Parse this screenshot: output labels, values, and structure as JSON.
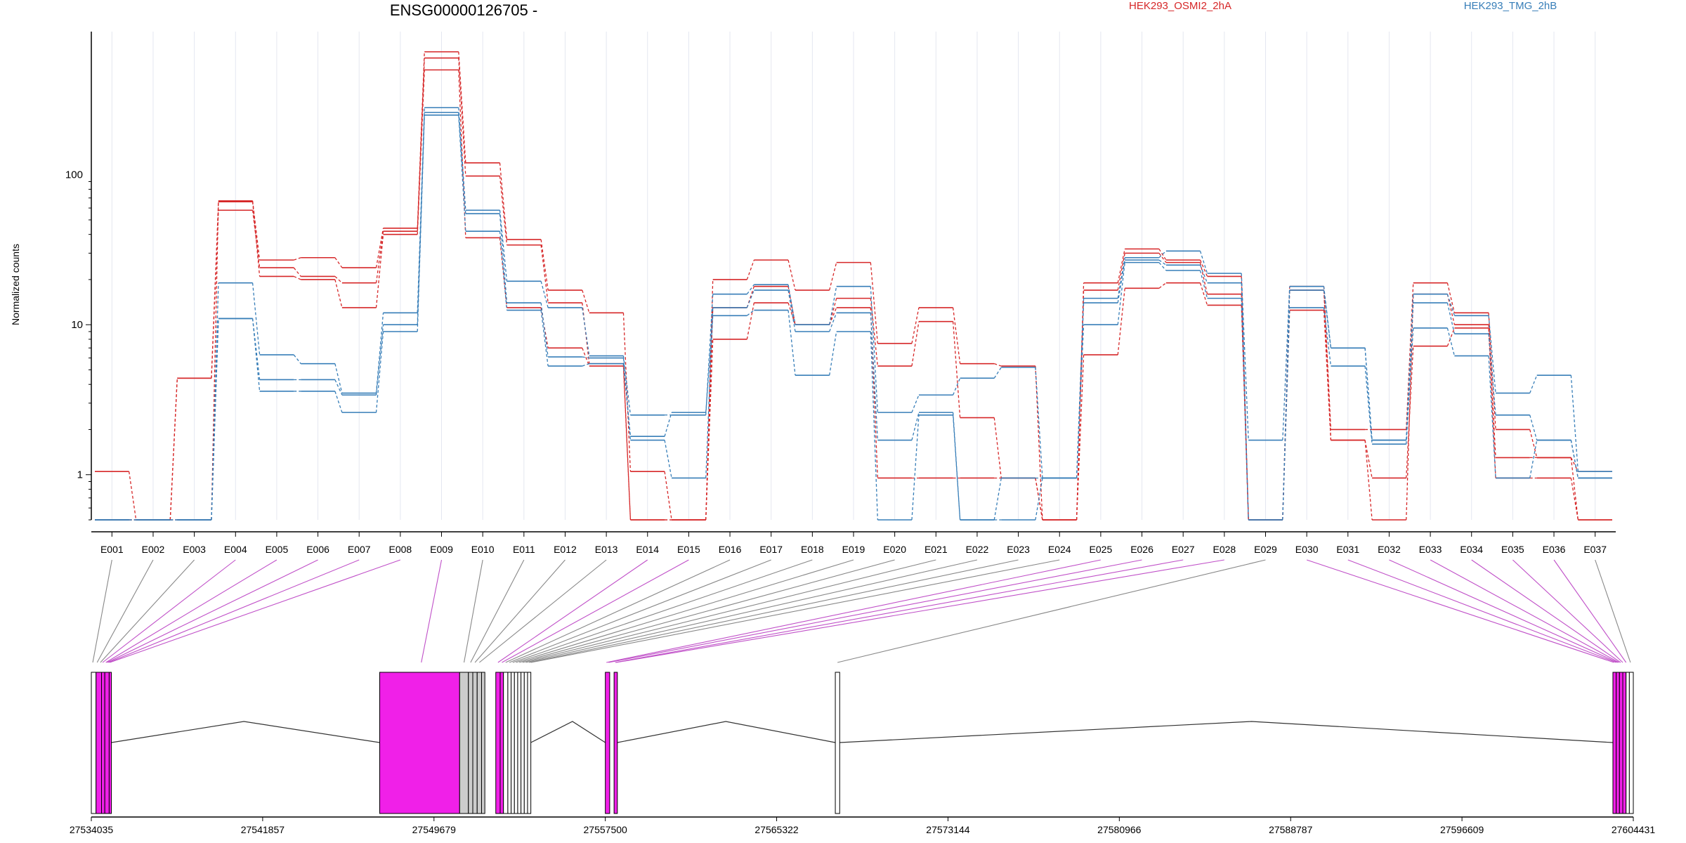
{
  "chart_data": {
    "type": "line",
    "title": "ENSG00000126705 -",
    "ylabel": "Normalized counts",
    "yscale": "log",
    "ylim": [
      0.5,
      900
    ],
    "yticks": [
      {
        "value": 1,
        "label": "1"
      },
      {
        "value": 10,
        "label": "10"
      },
      {
        "value": 100,
        "label": "100"
      }
    ],
    "categories": [
      "E001",
      "E002",
      "E003",
      "E004",
      "E005",
      "E006",
      "E007",
      "E008",
      "E009",
      "E010",
      "E011",
      "E012",
      "E013",
      "E014",
      "E015",
      "E016",
      "E017",
      "E018",
      "E019",
      "E020",
      "E021",
      "E022",
      "E023",
      "E024",
      "E025",
      "E026",
      "E027",
      "E028",
      "E029",
      "E030",
      "E031",
      "E032",
      "E033",
      "E034",
      "E035",
      "E036",
      "E037"
    ],
    "legend": [
      {
        "label": "HEK293_OSMI2_2hA",
        "color": "#d62728"
      },
      {
        "label": "HEK293_TMG_2hB",
        "color": "#377eb8"
      }
    ],
    "series": [
      {
        "group": 0,
        "values": [
          1.05,
          0.5,
          4.4,
          67,
          27,
          28,
          24,
          44,
          660,
          120,
          37,
          17,
          12,
          1.05,
          0.5,
          20,
          27,
          17,
          26,
          7.5,
          13,
          5.5,
          5.3,
          0.5,
          19,
          32,
          27,
          21,
          0.5,
          18,
          2,
          2,
          19,
          12,
          2,
          1.3,
          1.05
        ]
      },
      {
        "group": 0,
        "values": [
          0.5,
          0.5,
          4.4,
          58,
          24,
          21,
          19,
          42,
          600,
          98,
          34,
          14,
          5.5,
          0.5,
          0.5,
          13,
          18,
          10,
          15,
          5.3,
          10.5,
          2.4,
          0.95,
          0.5,
          17,
          30,
          26,
          16,
          0.5,
          17,
          1.7,
          0.5,
          16,
          10,
          1.3,
          1.3,
          0.5
        ]
      },
      {
        "group": 0,
        "values": [
          0.5,
          0.5,
          0.5,
          66,
          21,
          20,
          13,
          40,
          500,
          38,
          13,
          7,
          5.3,
          0.5,
          0.5,
          8,
          14,
          10,
          13,
          0.95,
          0.95,
          0.95,
          0.95,
          0.5,
          6.3,
          17.5,
          19,
          13.5,
          0.5,
          12.5,
          1.7,
          0.95,
          7.2,
          9.5,
          0.95,
          0.95,
          0.5
        ]
      },
      {
        "group": 1,
        "values": [
          0.5,
          0.5,
          0.5,
          19,
          6.3,
          5.5,
          3.5,
          12,
          280,
          58,
          19.5,
          13,
          6.2,
          2.5,
          2.5,
          16,
          18.5,
          10,
          18,
          2.6,
          3.4,
          4.4,
          5.2,
          0.95,
          15,
          28,
          31,
          22,
          1.7,
          18,
          7,
          1.7,
          16,
          11.5,
          3.5,
          4.6,
          1.05
        ]
      },
      {
        "group": 1,
        "values": [
          0.5,
          0.5,
          0.5,
          11,
          4.3,
          4.3,
          3.4,
          10,
          260,
          55,
          14,
          6.1,
          6,
          1.7,
          0.95,
          13,
          17,
          9,
          12,
          1.7,
          2.6,
          0.5,
          0.95,
          0.95,
          14,
          27,
          25,
          19,
          0.5,
          17,
          7,
          1.7,
          14,
          8.7,
          2.5,
          1.7,
          0.95
        ]
      },
      {
        "group": 1,
        "values": [
          0.5,
          0.5,
          0.5,
          11,
          3.6,
          3.6,
          2.6,
          9,
          250,
          42,
          12.5,
          5.3,
          5.5,
          1.8,
          2.6,
          11.5,
          12.5,
          4.6,
          9,
          0.5,
          2.5,
          0.5,
          0.5,
          0.95,
          10,
          26,
          23,
          15,
          0.5,
          13,
          5.3,
          1.6,
          9.5,
          6.2,
          0.95,
          1.7,
          0.95
        ]
      }
    ],
    "genome_axis": {
      "min": 27534035,
      "max": 27604431,
      "ticks": [
        "27534035",
        "27541857",
        "27549679",
        "27557500",
        "27565322",
        "27573144",
        "27580966",
        "27588787",
        "27596609",
        "27604431"
      ]
    },
    "exon_blocks": [
      {
        "start": 27534035,
        "end": 27534250,
        "color": "#ffffff"
      },
      {
        "start": 27534250,
        "end": 27534500,
        "color": "#f020e8"
      },
      {
        "start": 27534500,
        "end": 27534650,
        "color": "#f020e8"
      },
      {
        "start": 27534650,
        "end": 27534850,
        "color": "#f020e8"
      },
      {
        "start": 27534850,
        "end": 27534950,
        "color": "#f020e8"
      },
      {
        "start": 27547200,
        "end": 27550850,
        "color": "#f020e8"
      },
      {
        "start": 27550850,
        "end": 27551250,
        "color": "#cccccc"
      },
      {
        "start": 27551250,
        "end": 27551450,
        "color": "#cccccc"
      },
      {
        "start": 27551450,
        "end": 27551650,
        "color": "#cccccc"
      },
      {
        "start": 27551650,
        "end": 27551850,
        "color": "#cccccc"
      },
      {
        "start": 27551850,
        "end": 27552000,
        "color": "#cccccc"
      },
      {
        "start": 27552500,
        "end": 27552700,
        "color": "#f020e8"
      },
      {
        "start": 27552700,
        "end": 27552850,
        "color": "#f020e8"
      },
      {
        "start": 27552850,
        "end": 27553050,
        "color": "#ffffff"
      },
      {
        "start": 27553050,
        "end": 27553200,
        "color": "#ffffff"
      },
      {
        "start": 27553200,
        "end": 27553350,
        "color": "#ffffff"
      },
      {
        "start": 27553350,
        "end": 27553500,
        "color": "#ffffff"
      },
      {
        "start": 27553500,
        "end": 27553650,
        "color": "#ffffff"
      },
      {
        "start": 27553650,
        "end": 27553800,
        "color": "#ffffff"
      },
      {
        "start": 27553800,
        "end": 27553950,
        "color": "#ffffff"
      },
      {
        "start": 27553950,
        "end": 27554100,
        "color": "#ffffff"
      },
      {
        "start": 27557500,
        "end": 27557700,
        "color": "#f020e8"
      },
      {
        "start": 27557900,
        "end": 27558050,
        "color": "#f020e8"
      },
      {
        "start": 27568000,
        "end": 27568200,
        "color": "#ffffff"
      },
      {
        "start": 27603500,
        "end": 27603650,
        "color": "#f020e8"
      },
      {
        "start": 27603650,
        "end": 27603800,
        "color": "#f020e8"
      },
      {
        "start": 27603800,
        "end": 27603950,
        "color": "#f020e8"
      },
      {
        "start": 27603950,
        "end": 27604100,
        "color": "#f020e8"
      },
      {
        "start": 27604100,
        "end": 27604250,
        "color": "#ffffff"
      },
      {
        "start": 27604250,
        "end": 27604431,
        "color": "#ffffff"
      }
    ],
    "exon_map": [
      {
        "exon": "E001",
        "pos": 27534100,
        "color": "#888888"
      },
      {
        "exon": "E002",
        "pos": 27534300,
        "color": "#888888"
      },
      {
        "exon": "E003",
        "pos": 27534450,
        "color": "#888888"
      },
      {
        "exon": "E004",
        "pos": 27534550,
        "color": "#c050c8"
      },
      {
        "exon": "E005",
        "pos": 27534700,
        "color": "#c050c8"
      },
      {
        "exon": "E006",
        "pos": 27534760,
        "color": "#c050c8"
      },
      {
        "exon": "E007",
        "pos": 27534820,
        "color": "#c050c8"
      },
      {
        "exon": "E008",
        "pos": 27534880,
        "color": "#c050c8"
      },
      {
        "exon": "E009",
        "pos": 27549100,
        "color": "#c050c8"
      },
      {
        "exon": "E010",
        "pos": 27551050,
        "color": "#888888"
      },
      {
        "exon": "E011",
        "pos": 27551350,
        "color": "#888888"
      },
      {
        "exon": "E012",
        "pos": 27551550,
        "color": "#888888"
      },
      {
        "exon": "E013",
        "pos": 27551750,
        "color": "#888888"
      },
      {
        "exon": "E014",
        "pos": 27552600,
        "color": "#c050c8"
      },
      {
        "exon": "E015",
        "pos": 27552780,
        "color": "#c050c8"
      },
      {
        "exon": "E016",
        "pos": 27552950,
        "color": "#888888"
      },
      {
        "exon": "E017",
        "pos": 27553120,
        "color": "#888888"
      },
      {
        "exon": "E018",
        "pos": 27553270,
        "color": "#888888"
      },
      {
        "exon": "E019",
        "pos": 27553420,
        "color": "#888888"
      },
      {
        "exon": "E020",
        "pos": 27553570,
        "color": "#888888"
      },
      {
        "exon": "E021",
        "pos": 27553720,
        "color": "#888888"
      },
      {
        "exon": "E022",
        "pos": 27553870,
        "color": "#888888"
      },
      {
        "exon": "E023",
        "pos": 27554020,
        "color": "#888888"
      },
      {
        "exon": "E024",
        "pos": 27554100,
        "color": "#888888"
      },
      {
        "exon": "E025",
        "pos": 27557550,
        "color": "#c050c8"
      },
      {
        "exon": "E026",
        "pos": 27557650,
        "color": "#c050c8"
      },
      {
        "exon": "E027",
        "pos": 27557950,
        "color": "#c050c8"
      },
      {
        "exon": "E028",
        "pos": 27558000,
        "color": "#c050c8"
      },
      {
        "exon": "E029",
        "pos": 27568100,
        "color": "#888888"
      },
      {
        "exon": "E030",
        "pos": 27603550,
        "color": "#c050c8"
      },
      {
        "exon": "E031",
        "pos": 27603650,
        "color": "#c050c8"
      },
      {
        "exon": "E032",
        "pos": 27603720,
        "color": "#c050c8"
      },
      {
        "exon": "E033",
        "pos": 27603780,
        "color": "#c050c8"
      },
      {
        "exon": "E034",
        "pos": 27603850,
        "color": "#c050c8"
      },
      {
        "exon": "E035",
        "pos": 27603950,
        "color": "#c050c8"
      },
      {
        "exon": "E036",
        "pos": 27604100,
        "color": "#c050c8"
      },
      {
        "exon": "E037",
        "pos": 27604300,
        "color": "#888888"
      }
    ],
    "intron_peaks": [
      27541000,
      27556000,
      27563000,
      27587000
    ]
  }
}
